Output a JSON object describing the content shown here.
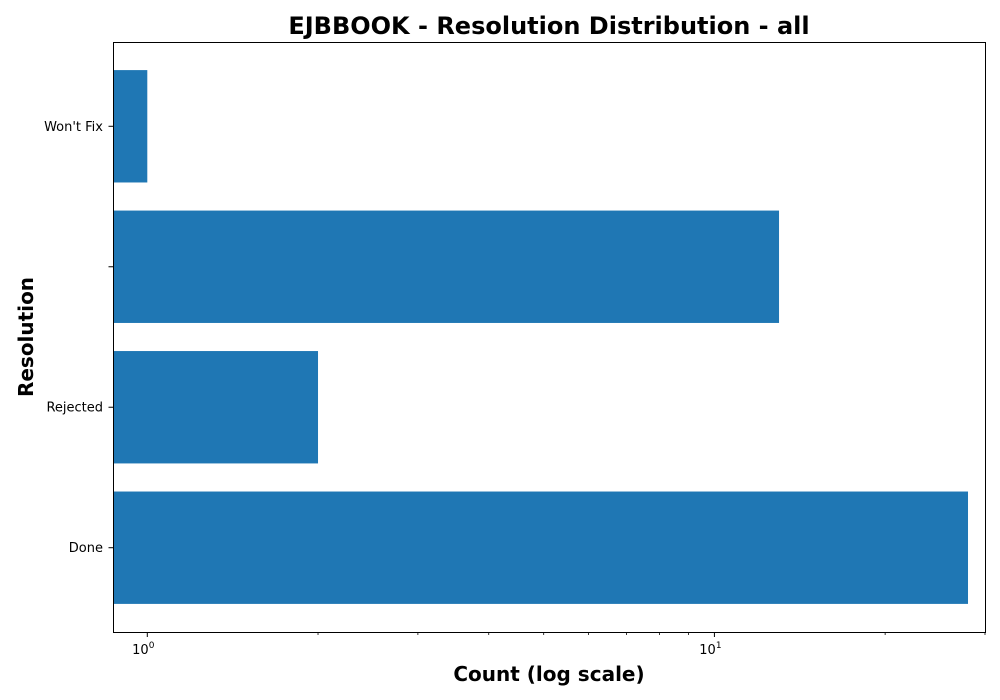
{
  "chart_data": {
    "type": "bar",
    "orientation": "horizontal",
    "title": "EJBBOOK - Resolution Distribution - all",
    "xlabel": "Count (log scale)",
    "ylabel": "Resolution",
    "x_scale": "log",
    "xlim": [
      0.87,
      30.0
    ],
    "categories": [
      "Done",
      "Rejected",
      "",
      "Won't Fix"
    ],
    "values": [
      28,
      2,
      13,
      1
    ],
    "bar_color": "#1f77b4",
    "x_major_ticks": [
      {
        "value": 1,
        "base": "10",
        "exp": "0"
      },
      {
        "value": 10,
        "base": "10",
        "exp": "1"
      }
    ],
    "x_minor_ticks": [
      2,
      3,
      4,
      5,
      6,
      7,
      8,
      9,
      20,
      30
    ],
    "grid": false,
    "legend": "none"
  }
}
